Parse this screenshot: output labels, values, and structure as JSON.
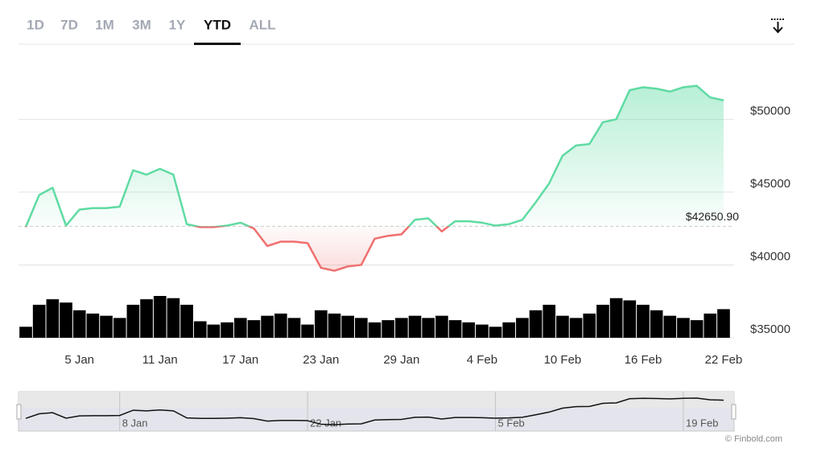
{
  "tabs": [
    "1D",
    "7D",
    "1M",
    "3M",
    "1Y",
    "YTD",
    "ALL"
  ],
  "active_tab": 5,
  "credit": "© Finbold.com",
  "chart_data": {
    "type": "line",
    "categories": [
      "1 Jan",
      "2 Jan",
      "3 Jan",
      "4 Jan",
      "5 Jan",
      "6 Jan",
      "7 Jan",
      "8 Jan",
      "9 Jan",
      "10 Jan",
      "11 Jan",
      "12 Jan",
      "13 Jan",
      "14 Jan",
      "15 Jan",
      "16 Jan",
      "17 Jan",
      "18 Jan",
      "19 Jan",
      "20 Jan",
      "21 Jan",
      "22 Jan",
      "23 Jan",
      "24 Jan",
      "25 Jan",
      "26 Jan",
      "27 Jan",
      "28 Jan",
      "29 Jan",
      "30 Jan",
      "31 Jan",
      "1 Feb",
      "2 Feb",
      "3 Feb",
      "4 Feb",
      "5 Feb",
      "6 Feb",
      "7 Feb",
      "8 Feb",
      "9 Feb",
      "10 Feb",
      "11 Feb",
      "12 Feb",
      "13 Feb",
      "14 Feb",
      "15 Feb",
      "16 Feb",
      "17 Feb",
      "18 Feb",
      "19 Feb",
      "20 Feb",
      "21 Feb",
      "22 Feb"
    ],
    "values": [
      42600,
      44800,
      45300,
      42700,
      43800,
      43900,
      43900,
      44000,
      46500,
      46200,
      46600,
      46200,
      42800,
      42600,
      42600,
      42700,
      42900,
      42500,
      41300,
      41600,
      41600,
      41500,
      39800,
      39600,
      39900,
      40000,
      41800,
      42000,
      42100,
      43100,
      43200,
      42300,
      43000,
      43000,
      42900,
      42700,
      42800,
      43100,
      44300,
      45600,
      47500,
      48200,
      48300,
      49800,
      50000,
      52000,
      52200,
      52100,
      51900,
      52200,
      52300,
      51500,
      51300
    ],
    "up_color": "#5fdba3",
    "down_color": "#ef6f6f",
    "baseline": {
      "value": 42650.9,
      "label": "$42650.90"
    },
    "volume": {
      "color": "#000000",
      "values": [
        10,
        30,
        35,
        32,
        25,
        22,
        20,
        18,
        30,
        35,
        38,
        36,
        30,
        15,
        12,
        14,
        18,
        16,
        20,
        22,
        18,
        12,
        25,
        22,
        20,
        18,
        14,
        16,
        18,
        20,
        18,
        20,
        16,
        14,
        12,
        10,
        14,
        18,
        25,
        30,
        20,
        18,
        22,
        30,
        36,
        34,
        30,
        25,
        20,
        18,
        16,
        22,
        26
      ]
    },
    "ylim": [
      35000,
      54600
    ],
    "yticks": [
      {
        "value": 35000,
        "label": "$35000"
      },
      {
        "value": 40000,
        "label": "$40000"
      },
      {
        "value": 45000,
        "label": "$45000"
      },
      {
        "value": 50000,
        "label": "$50000"
      }
    ],
    "xticks": [
      "5 Jan",
      "11 Jan",
      "17 Jan",
      "23 Jan",
      "29 Jan",
      "4 Feb",
      "10 Feb",
      "16 Feb",
      "22 Feb"
    ],
    "grid": true,
    "navigator_xticks": [
      "8 Jan",
      "22 Jan",
      "5 Feb",
      "19 Feb"
    ]
  }
}
